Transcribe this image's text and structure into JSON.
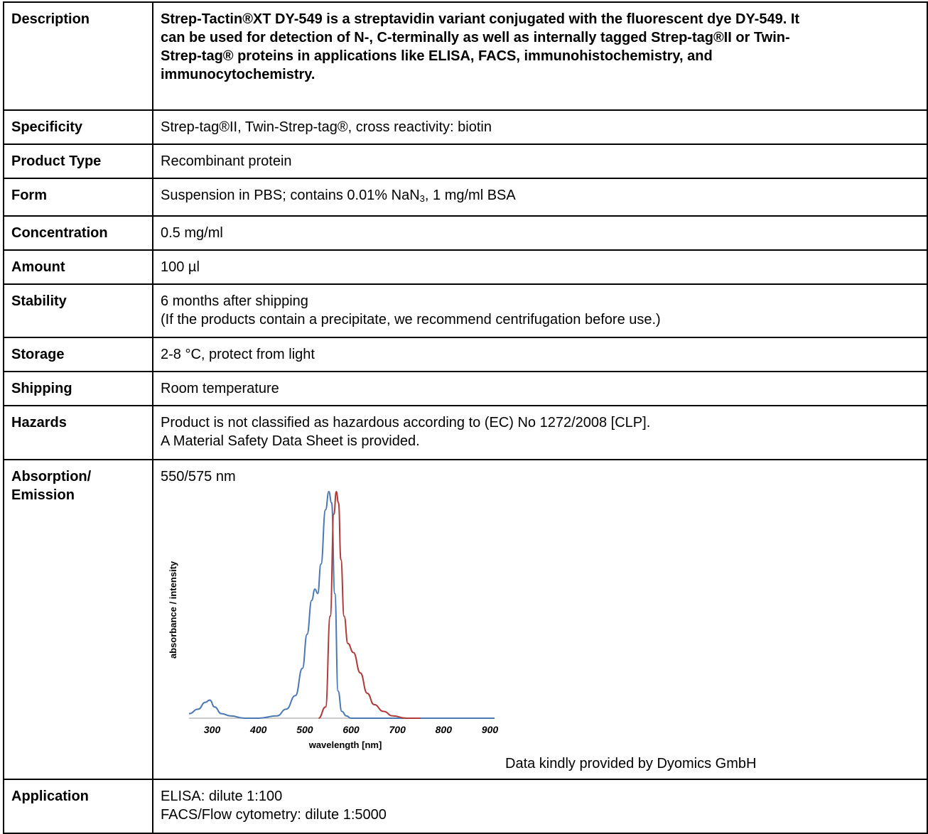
{
  "rows": {
    "description": {
      "label": "Description",
      "lines": [
        "Strep-Tactin®XT DY-549 is a streptavidin variant conjugated with the fluorescent dye DY-549. It",
        "can be used for detection of N-, C-terminally as well as internally tagged Strep-tag®II or Twin-",
        "Strep-tag® proteins in applications like ELISA, FACS, immunohistochemistry, and",
        "immunocytochemistry."
      ]
    },
    "specificity": {
      "label": "Specificity",
      "value": "Strep-tag®II, Twin-Strep-tag®, cross reactivity: biotin"
    },
    "product_type": {
      "label": "Product Type",
      "value": "Recombinant protein"
    },
    "form": {
      "label": "Form",
      "value_before": "Suspension in PBS; contains 0.01% NaN",
      "value_sub": "3",
      "value_after": ", 1 mg/ml BSA"
    },
    "concentration": {
      "label": "Concentration",
      "value": "0.5 mg/ml"
    },
    "amount": {
      "label": "Amount",
      "value": "100 µl"
    },
    "stability": {
      "label": "Stability",
      "lines": [
        "6 months after shipping",
        "(If the products contain a precipitate, we recommend centrifugation before use.)"
      ]
    },
    "storage": {
      "label": "Storage",
      "value": "2-8 °C, protect from light"
    },
    "shipping": {
      "label": "Shipping",
      "value": "Room temperature"
    },
    "hazards": {
      "label": "Hazards",
      "lines": [
        "Product is not classified as hazardous according to (EC) No 1272/2008 [CLP].",
        "A Material Safety Data Sheet is provided."
      ]
    },
    "absorption": {
      "label_lines": [
        "Absorption/",
        "Emission"
      ],
      "value": "550/575 nm",
      "credit": "Data kindly provided by Dyomics GmbH"
    },
    "application": {
      "label": "Application",
      "lines": [
        "ELISA: dilute 1:100",
        "FACS/Flow cytometry: dilute 1:5000"
      ]
    }
  },
  "chart_data": {
    "type": "line",
    "xlabel": "wavelength [nm]",
    "ylabel": "absorbance / intensity",
    "xlim": [
      250,
      910
    ],
    "ylim": [
      0,
      1
    ],
    "x_ticks": [
      300,
      400,
      500,
      600,
      700,
      800,
      900
    ],
    "grid": false,
    "series": [
      {
        "color": "#4a78b5",
        "x": [
          250,
          270,
          285,
          295,
          305,
          320,
          340,
          370,
          400,
          440,
          460,
          480,
          495,
          505,
          515,
          522,
          528,
          535,
          545,
          552,
          558,
          565,
          572,
          580,
          590,
          600,
          615,
          640,
          700,
          800,
          910
        ],
        "y": [
          0.02,
          0.04,
          0.07,
          0.08,
          0.05,
          0.02,
          0.01,
          0.0,
          0.0,
          0.01,
          0.04,
          0.1,
          0.22,
          0.37,
          0.52,
          0.57,
          0.55,
          0.68,
          0.92,
          1.0,
          0.95,
          0.55,
          0.12,
          0.03,
          0.01,
          0.0,
          0.0,
          0.0,
          0.0,
          0.0,
          0.0
        ]
      },
      {
        "color": "#b03a3a",
        "x": [
          530,
          545,
          555,
          563,
          568,
          573,
          578,
          585,
          593,
          605,
          620,
          635,
          650,
          670,
          690,
          720,
          750
        ],
        "y": [
          0.0,
          0.05,
          0.45,
          0.9,
          1.0,
          0.95,
          0.7,
          0.45,
          0.33,
          0.29,
          0.2,
          0.11,
          0.06,
          0.03,
          0.01,
          0.0,
          0.0
        ]
      }
    ]
  }
}
